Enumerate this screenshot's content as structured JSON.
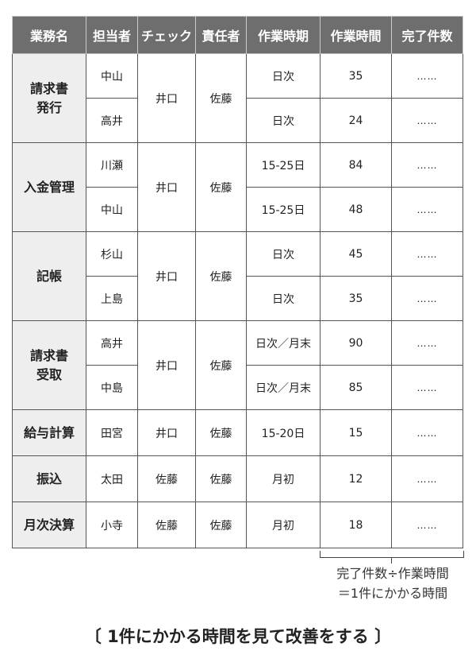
{
  "headers": [
    "業務名",
    "担当者",
    "チェック",
    "責任者",
    "作業時期",
    "作業時間",
    "完了件数"
  ],
  "groups": [
    {
      "task": "請求書\n発行",
      "check": "井口",
      "manager": "佐藤",
      "rows": [
        {
          "person": "中山",
          "period": "日次",
          "hours": "35",
          "done": "……"
        },
        {
          "person": "高井",
          "period": "日次",
          "hours": "24",
          "done": "……"
        }
      ]
    },
    {
      "task": "入金管理",
      "check": "井口",
      "manager": "佐藤",
      "rows": [
        {
          "person": "川瀬",
          "period": "15-25日",
          "hours": "84",
          "done": "……"
        },
        {
          "person": "中山",
          "period": "15-25日",
          "hours": "48",
          "done": "……"
        }
      ]
    },
    {
      "task": "記帳",
      "check": "井口",
      "manager": "佐藤",
      "rows": [
        {
          "person": "杉山",
          "period": "日次",
          "hours": "45",
          "done": "……"
        },
        {
          "person": "上島",
          "period": "日次",
          "hours": "35",
          "done": "……"
        }
      ]
    },
    {
      "task": "請求書\n受取",
      "check": "井口",
      "manager": "佐藤",
      "rows": [
        {
          "person": "高井",
          "period": "日次／月末",
          "hours": "90",
          "done": "……"
        },
        {
          "person": "中島",
          "period": "日次／月末",
          "hours": "85",
          "done": "……"
        }
      ]
    },
    {
      "task": "給与計算",
      "check": "井口",
      "manager": "佐藤",
      "rows": [
        {
          "person": "田宮",
          "period": "15-20日",
          "hours": "15",
          "done": "……"
        }
      ]
    },
    {
      "task": "振込",
      "check": "佐藤",
      "manager": "佐藤",
      "rows": [
        {
          "person": "太田",
          "period": "月初",
          "hours": "12",
          "done": "……"
        }
      ]
    },
    {
      "task": "月次決算",
      "check": "佐藤",
      "manager": "佐藤",
      "rows": [
        {
          "person": "小寺",
          "period": "月初",
          "hours": "18",
          "done": "……"
        }
      ]
    }
  ],
  "note": {
    "line1": "完了件数÷作業時間",
    "line2": "＝1件にかかる時間"
  },
  "caption": "〔 1件にかかる時間を見て改善をする 〕"
}
